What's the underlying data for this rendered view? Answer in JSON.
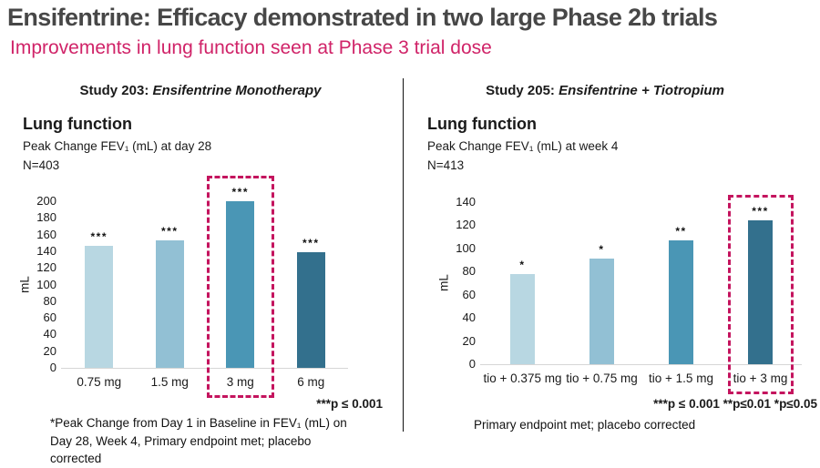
{
  "header": {
    "title": "Ensifentrine: Efficacy demonstrated in two large Phase 2b trials",
    "subtitle": "Improvements in lung function seen at Phase 3 trial dose"
  },
  "colors": {
    "title_gray": "#474747",
    "subtitle_pink": "#d02368",
    "highlight_box_pink": "#c4145e",
    "axis_line_gray": "#d6d6d6",
    "bar_palette": [
      "#b8d7e2",
      "#92c0d4",
      "#4a96b5",
      "#33708d"
    ]
  },
  "panels": [
    {
      "study_label": "Study 203: ",
      "study_name": "Ensifentrine Monotherapy",
      "section_heading": "Lung function",
      "measure_line": "Peak Change FEV₁ (mL) at day 28",
      "n_label": "N=403",
      "pvalue_note": "***p ≤ 0.001",
      "footnote": "*Peak Change from Day 1 in Baseline in FEV₁ (mL) on Day 28, Week 4, Primary endpoint met; placebo corrected"
    },
    {
      "study_label": "Study 205: ",
      "study_name": "Ensifentrine + Tiotropium",
      "section_heading": "Lung function",
      "measure_line": "Peak Change FEV₁ (mL) at week 4",
      "n_label": "N=413",
      "pvalue_note": "***p ≤ 0.001 **p≤0.01 *p≤0.05",
      "footnote": "Primary endpoint met; placebo corrected"
    }
  ],
  "chart_data": [
    {
      "type": "bar",
      "title": "Study 203: Ensifentrine Monotherapy — Peak Change FEV₁ (mL) at day 28",
      "categories": [
        "0.75 mg",
        "1.5 mg",
        "3 mg",
        "6 mg"
      ],
      "values": [
        146,
        153,
        200,
        139
      ],
      "significance": [
        "***",
        "***",
        "***",
        "***"
      ],
      "highlight_index": 2,
      "xlabel": "",
      "ylabel": "mL",
      "ylim": [
        0,
        200
      ],
      "ytick_step": 20,
      "grid": false,
      "legend": false
    },
    {
      "type": "bar",
      "title": "Study 205: Ensifentrine + Tiotropium — Peak Change FEV₁ (mL) at week 4",
      "categories": [
        "tio + 0.375 mg",
        "tio + 0.75 mg",
        "tio + 1.5 mg",
        "tio + 3 mg"
      ],
      "values": [
        78,
        91,
        107,
        124
      ],
      "significance": [
        "*",
        "*",
        "**",
        "***"
      ],
      "highlight_index": 3,
      "xlabel": "",
      "ylabel": "mL",
      "ylim": [
        0,
        140
      ],
      "ytick_step": 20,
      "grid": false,
      "legend": false
    }
  ]
}
